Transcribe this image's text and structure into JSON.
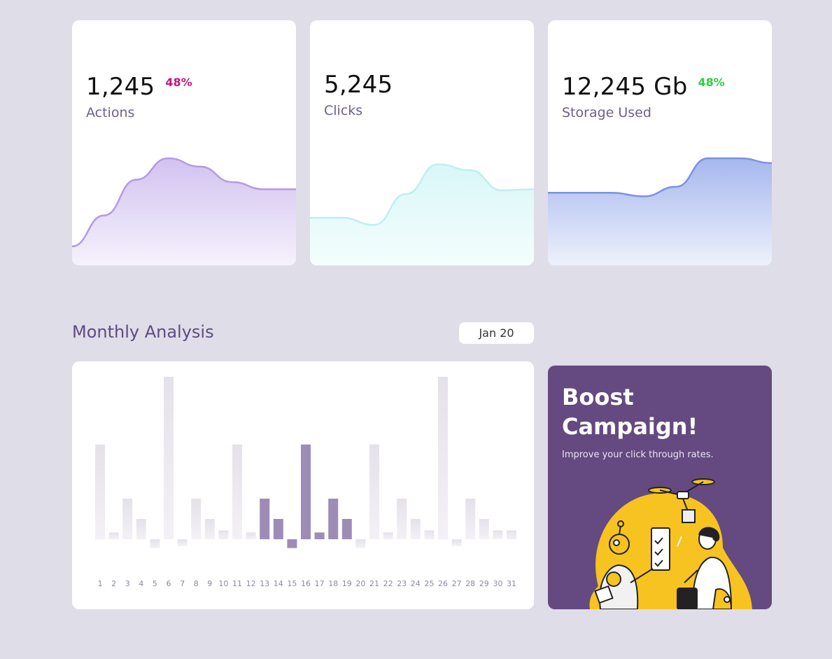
{
  "stats": [
    {
      "value": "1,245",
      "percent": "48%",
      "label": "Actions",
      "percent_color": "#c2187c",
      "line_color": "#b39be0",
      "fill_top": "#d2c2f0",
      "fill_bottom": "#f6f2fd",
      "trend": [
        0.16,
        0.42,
        0.72,
        0.9,
        0.83,
        0.7,
        0.64,
        0.64
      ]
    },
    {
      "value": "5,245",
      "percent": "",
      "label": "Clicks",
      "percent_color": "#2ecc40",
      "line_color": "#c0eef1",
      "fill_top": "#d9f6f7",
      "fill_bottom": "#f4fefe",
      "trend": [
        0.4,
        0.4,
        0.34,
        0.6,
        0.85,
        0.8,
        0.63,
        0.64
      ]
    },
    {
      "value": "12,245 Gb",
      "percent": "48%",
      "label": "Storage Used",
      "percent_color": "#2ecc40",
      "line_color": "#7c92df",
      "fill_top": "#a6b7ee",
      "fill_bottom": "#eef1fc",
      "trend": [
        0.61,
        0.61,
        0.61,
        0.58,
        0.66,
        0.9,
        0.9,
        0.86
      ]
    }
  ],
  "monthly": {
    "title": "Monthly Analysis",
    "month_label": "Jan 20",
    "chart_data": {
      "type": "bar",
      "categories": [
        "1",
        "2",
        "3",
        "4",
        "5",
        "6",
        "7",
        "8",
        "9",
        "10",
        "11",
        "12",
        "13",
        "14",
        "15",
        "16",
        "17",
        "18",
        "19",
        "20",
        "21",
        "22",
        "23",
        "24",
        "25",
        "26",
        "27",
        "28",
        "29",
        "30",
        "31"
      ],
      "values": [
        14,
        1,
        6,
        3,
        -1.3,
        24,
        -1,
        6,
        3,
        1.3,
        14,
        1,
        6,
        3,
        -1.3,
        14,
        1,
        6,
        3,
        -1.3,
        14,
        1,
        6,
        3,
        1.3,
        24,
        -1,
        6,
        3,
        1.3,
        1.3
      ],
      "highlight_range": [
        13,
        19
      ],
      "ylim": [
        -1.5,
        24
      ],
      "colors": {
        "default": "#ebe8f0",
        "highlight": "#9d8db6"
      }
    }
  },
  "promo": {
    "title": "Boost Campaign!",
    "subtitle": "Improve your click through rates."
  }
}
